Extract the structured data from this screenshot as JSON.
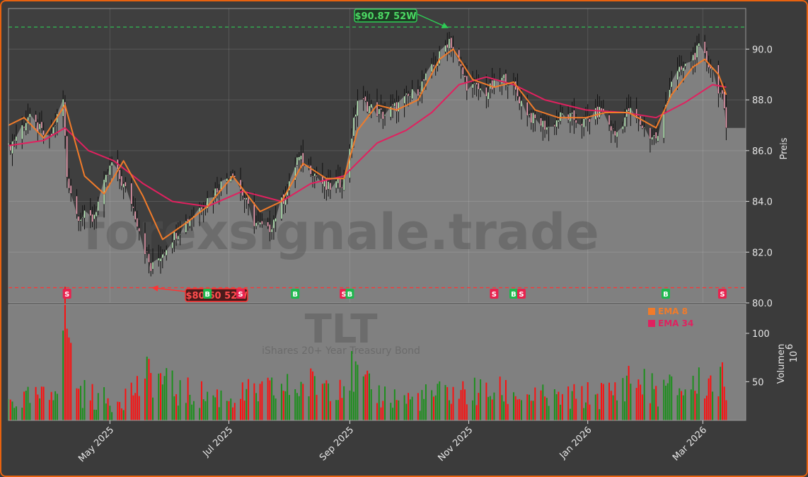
{
  "watermark": {
    "site": "forexsignale.trade",
    "ticker": "TLT",
    "name": "iShares 20+ Year Treasury Bond"
  },
  "colors": {
    "background": "#3b3b3b",
    "plot_bg": "#808080",
    "frame": "#e8620f",
    "ema_fast": "#f07b2a",
    "ema_slow": "#e0215f",
    "up": "#1a8f1a",
    "down": "#ff0d0d",
    "high_line": "#2ecc55",
    "low_line": "#ff3333"
  },
  "chart_data": [
    {
      "type": "candlestick",
      "ylabel": "Preis",
      "ylim": [
        80.0,
        91.6
      ],
      "yticks": [
        80.0,
        82.0,
        84.0,
        86.0,
        88.0,
        90.0
      ],
      "xlim": [
        "2025-03-10",
        "2026-03-23"
      ],
      "xticks": [
        {
          "date": "2025-05-01",
          "label": "May 2025"
        },
        {
          "date": "2025-07-01",
          "label": "Jul 2025"
        },
        {
          "date": "2025-09-01",
          "label": "Sep 2025"
        },
        {
          "date": "2025-11-01",
          "label": "Nov 2025"
        },
        {
          "date": "2026-01-01",
          "label": "Jan 2026"
        },
        {
          "date": "2026-03-01",
          "label": "Mar 2026"
        }
      ],
      "close_anchors": [
        [
          "2025-03-10",
          86.1
        ],
        [
          "2025-03-20",
          87.3
        ],
        [
          "2025-03-31",
          86.4
        ],
        [
          "2025-04-07",
          88.0
        ],
        [
          "2025-04-09",
          85.0
        ],
        [
          "2025-04-14",
          83.5
        ],
        [
          "2025-04-22",
          83.3
        ],
        [
          "2025-05-02",
          85.5
        ],
        [
          "2025-05-12",
          84.0
        ],
        [
          "2025-05-22",
          81.3
        ],
        [
          "2025-06-02",
          82.6
        ],
        [
          "2025-06-13",
          83.5
        ],
        [
          "2025-06-25",
          84.5
        ],
        [
          "2025-07-03",
          85.2
        ],
        [
          "2025-07-14",
          83.2
        ],
        [
          "2025-07-21",
          82.8
        ],
        [
          "2025-08-01",
          84.6
        ],
        [
          "2025-08-05",
          85.7
        ],
        [
          "2025-08-12",
          85.3
        ],
        [
          "2025-08-20",
          84.5
        ],
        [
          "2025-08-29",
          84.8
        ],
        [
          "2025-09-05",
          88.0
        ],
        [
          "2025-09-18",
          87.4
        ],
        [
          "2025-09-26",
          87.8
        ],
        [
          "2025-10-06",
          88.4
        ],
        [
          "2025-10-14",
          89.3
        ],
        [
          "2025-10-22",
          90.4
        ],
        [
          "2025-10-31",
          88.6
        ],
        [
          "2025-11-10",
          88.3
        ],
        [
          "2025-11-20",
          88.9
        ],
        [
          "2025-12-03",
          87.3
        ],
        [
          "2025-12-12",
          86.9
        ],
        [
          "2025-12-19",
          87.4
        ],
        [
          "2025-12-30",
          87.1
        ],
        [
          "2026-01-08",
          87.6
        ],
        [
          "2026-01-15",
          86.6
        ],
        [
          "2026-01-22",
          87.6
        ],
        [
          "2026-02-02",
          86.6
        ],
        [
          "2026-02-06",
          86.5
        ],
        [
          "2026-02-13",
          88.8
        ],
        [
          "2026-02-20",
          89.3
        ],
        [
          "2026-02-27",
          90.0
        ],
        [
          "2026-03-06",
          89.2
        ],
        [
          "2026-03-11",
          88.0
        ],
        [
          "2026-03-13",
          86.9
        ]
      ],
      "ema_fast": {
        "name": "EMA 8",
        "points": [
          [
            "2025-03-10",
            87.0
          ],
          [
            "2025-03-18",
            87.3
          ],
          [
            "2025-03-28",
            86.5
          ],
          [
            "2025-04-08",
            87.8
          ],
          [
            "2025-04-18",
            85.0
          ],
          [
            "2025-04-28",
            84.3
          ],
          [
            "2025-05-08",
            85.6
          ],
          [
            "2025-05-18",
            84.2
          ],
          [
            "2025-05-28",
            82.5
          ],
          [
            "2025-06-10",
            83.2
          ],
          [
            "2025-06-20",
            83.8
          ],
          [
            "2025-07-03",
            85.0
          ],
          [
            "2025-07-17",
            83.6
          ],
          [
            "2025-07-28",
            84.0
          ],
          [
            "2025-08-08",
            85.5
          ],
          [
            "2025-08-20",
            84.9
          ],
          [
            "2025-08-29",
            84.9
          ],
          [
            "2025-09-05",
            86.8
          ],
          [
            "2025-09-15",
            87.8
          ],
          [
            "2025-09-25",
            87.6
          ],
          [
            "2025-10-06",
            88.0
          ],
          [
            "2025-10-17",
            89.6
          ],
          [
            "2025-10-24",
            90.0
          ],
          [
            "2025-11-03",
            88.8
          ],
          [
            "2025-11-14",
            88.5
          ],
          [
            "2025-11-24",
            88.7
          ],
          [
            "2025-12-05",
            87.6
          ],
          [
            "2025-12-17",
            87.3
          ],
          [
            "2025-12-31",
            87.3
          ],
          [
            "2026-01-10",
            87.5
          ],
          [
            "2026-01-22",
            87.5
          ],
          [
            "2026-02-05",
            86.9
          ],
          [
            "2026-02-13",
            88.2
          ],
          [
            "2026-02-24",
            89.3
          ],
          [
            "2026-03-02",
            89.6
          ],
          [
            "2026-03-09",
            89.0
          ],
          [
            "2026-03-13",
            88.2
          ]
        ]
      },
      "ema_slow": {
        "name": "EMA 34",
        "points": [
          [
            "2025-03-10",
            86.2
          ],
          [
            "2025-03-28",
            86.4
          ],
          [
            "2025-04-08",
            86.9
          ],
          [
            "2025-04-20",
            86.0
          ],
          [
            "2025-05-03",
            85.6
          ],
          [
            "2025-05-18",
            84.7
          ],
          [
            "2025-06-02",
            84.0
          ],
          [
            "2025-06-20",
            83.8
          ],
          [
            "2025-07-08",
            84.4
          ],
          [
            "2025-07-28",
            84.0
          ],
          [
            "2025-08-12",
            84.7
          ],
          [
            "2025-08-29",
            85.0
          ],
          [
            "2025-09-15",
            86.3
          ],
          [
            "2025-09-30",
            86.8
          ],
          [
            "2025-10-13",
            87.5
          ],
          [
            "2025-10-27",
            88.6
          ],
          [
            "2025-11-10",
            88.9
          ],
          [
            "2025-11-24",
            88.6
          ],
          [
            "2025-12-10",
            88.0
          ],
          [
            "2025-12-31",
            87.6
          ],
          [
            "2026-01-20",
            87.5
          ],
          [
            "2026-02-05",
            87.3
          ],
          [
            "2026-02-20",
            87.9
          ],
          [
            "2026-03-06",
            88.6
          ],
          [
            "2026-03-13",
            88.5
          ]
        ]
      },
      "annotations": [
        {
          "label": "$90.87 52W",
          "date": "2025-10-22",
          "value": 90.87,
          "kind": "high"
        },
        {
          "label": "$80.60 52W",
          "date": "2025-05-22",
          "value": 80.6,
          "kind": "low"
        }
      ],
      "signals": [
        {
          "date": "2025-04-09",
          "type": "S"
        },
        {
          "date": "2025-06-20",
          "type": "B"
        },
        {
          "date": "2025-07-07",
          "type": "S"
        },
        {
          "date": "2025-08-04",
          "type": "B"
        },
        {
          "date": "2025-08-29",
          "type": "S"
        },
        {
          "date": "2025-09-01",
          "type": "B"
        },
        {
          "date": "2025-11-14",
          "type": "S"
        },
        {
          "date": "2025-11-24",
          "type": "B"
        },
        {
          "date": "2025-11-28",
          "type": "S"
        },
        {
          "date": "2026-02-10",
          "type": "B"
        },
        {
          "date": "2026-03-11",
          "type": "S"
        }
      ],
      "legend": {
        "position": "top-right",
        "entries": [
          "EMA 8",
          "EMA 34"
        ]
      }
    },
    {
      "type": "bar",
      "ylabel": "Volumen",
      "ylabel_exponent": "10",
      "ylabel_exponent_power": "6",
      "ylim": [
        10,
        130
      ],
      "yticks": [
        50,
        100
      ],
      "volume_anchors": [
        [
          "2025-03-10",
          30
        ],
        [
          "2025-03-31",
          35
        ],
        [
          "2025-04-04",
          60
        ],
        [
          "2025-04-07",
          110
        ],
        [
          "2025-04-09",
          120
        ],
        [
          "2025-04-11",
          75
        ],
        [
          "2025-04-16",
          40
        ],
        [
          "2025-05-01",
          30
        ],
        [
          "2025-05-15",
          45
        ],
        [
          "2025-05-23",
          60
        ],
        [
          "2025-06-05",
          40
        ],
        [
          "2025-07-01",
          35
        ],
        [
          "2025-08-05",
          45
        ],
        [
          "2025-08-29",
          55
        ],
        [
          "2025-09-02",
          60
        ],
        [
          "2025-09-12",
          40
        ],
        [
          "2025-10-01",
          32
        ],
        [
          "2025-10-24",
          40
        ],
        [
          "2025-11-20",
          40
        ],
        [
          "2025-12-15",
          32
        ],
        [
          "2026-01-15",
          40
        ],
        [
          "2026-01-22",
          55
        ],
        [
          "2026-02-05",
          42
        ],
        [
          "2026-02-20",
          45
        ],
        [
          "2026-03-05",
          52
        ],
        [
          "2026-03-13",
          50
        ]
      ]
    }
  ]
}
